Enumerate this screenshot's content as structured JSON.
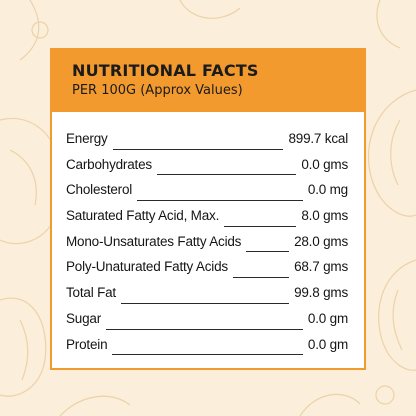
{
  "header": {
    "title": "NUTRITIONAL FACTS",
    "subtitle": "PER 100G (Approx Values)"
  },
  "rows": [
    {
      "label": "Energy",
      "value": "899.7 kcal"
    },
    {
      "label": "Carbohydrates",
      "value": "0.0 gms"
    },
    {
      "label": "Cholesterol",
      "value": "0.0 mg"
    },
    {
      "label": "Saturated Fatty Acid, Max.",
      "value": "8.0 gms"
    },
    {
      "label": "Mono-Unsaturates Fatty Acids",
      "value": "28.0 gms"
    },
    {
      "label": "Poly-Unaturated Fatty Acids",
      "value": "68.7 gms"
    },
    {
      "label": "Total Fat",
      "value": "99.8 gms"
    },
    {
      "label": "Sugar",
      "value": "0.0 gm"
    },
    {
      "label": "Protein",
      "value": "0.0 gm"
    }
  ],
  "colors": {
    "background": "#fbeedb",
    "accent": "#f39a2e",
    "line_art": "#ecd2a8"
  }
}
